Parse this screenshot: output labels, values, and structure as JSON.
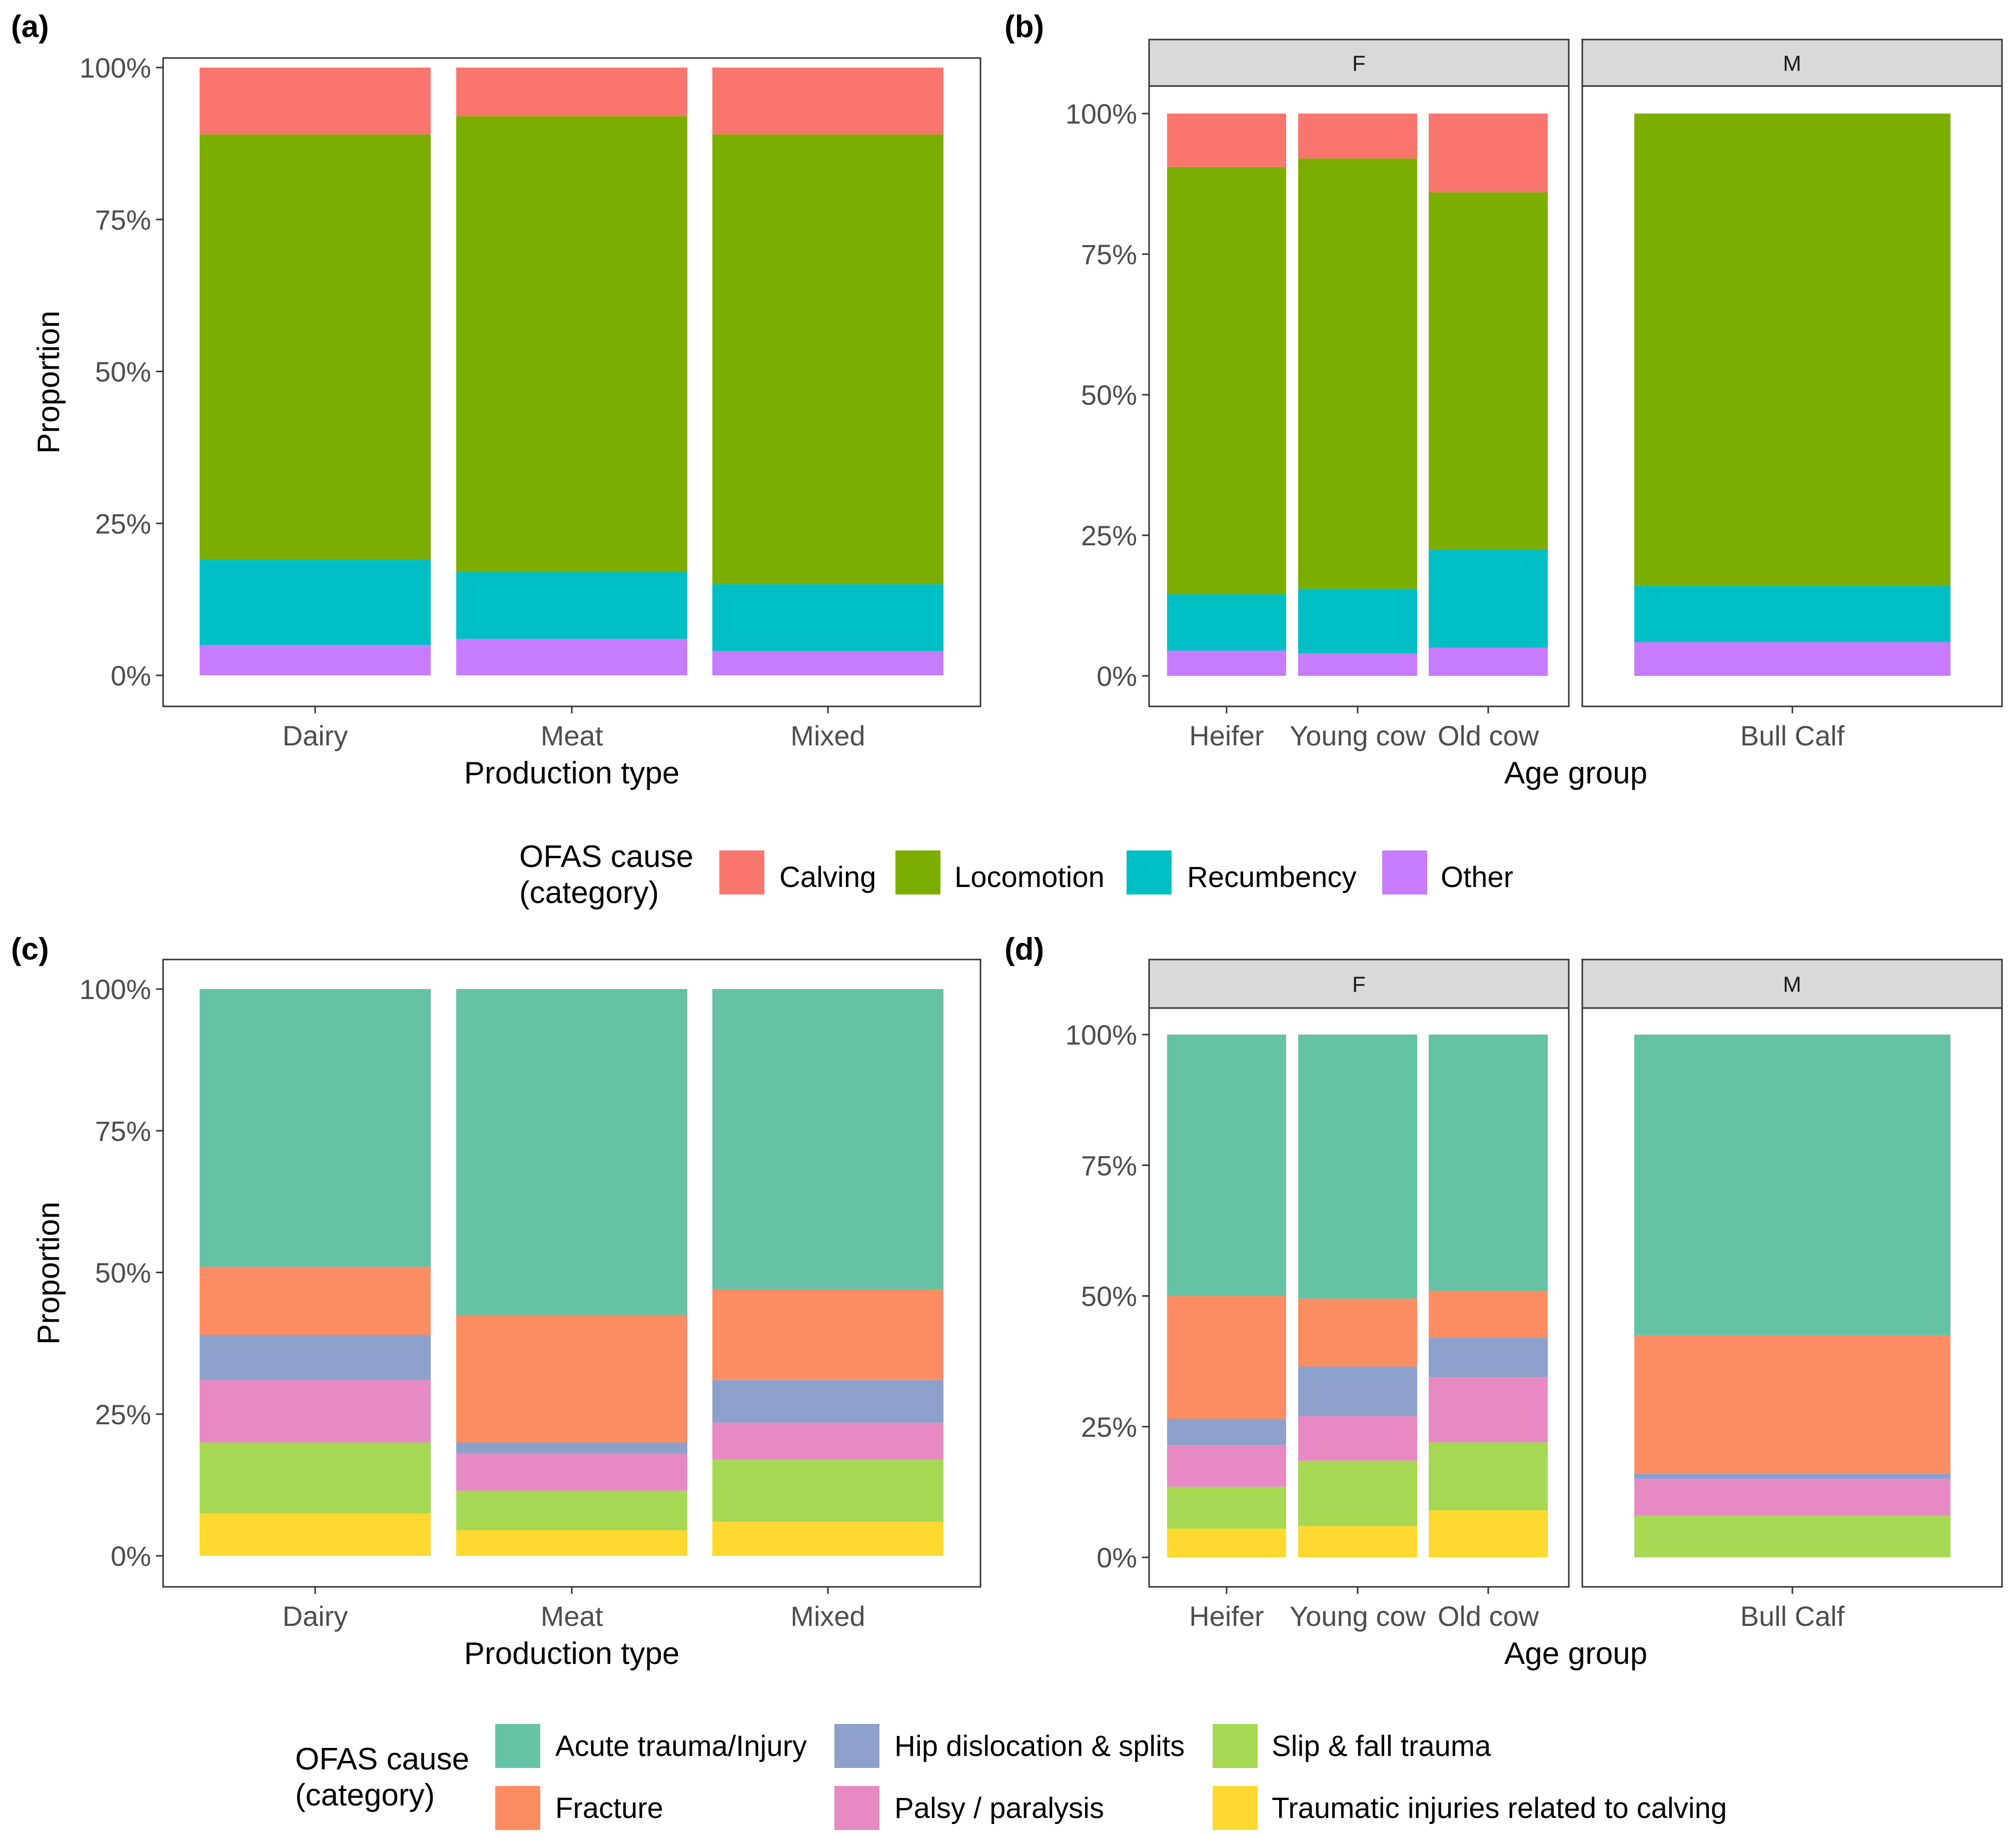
{
  "panels": [
    {
      "label": "(a)",
      "type": "production",
      "x_title": "Production type",
      "y_title": "Proportion",
      "chart_data": {
        "type": "bar",
        "stacked": true,
        "categories": [
          "Dairy",
          "Meat",
          "Mixed"
        ],
        "series": [
          {
            "name": "Other",
            "values": [
              0.05,
              0.06,
              0.04
            ]
          },
          {
            "name": "Recumbency",
            "values": [
              0.14,
              0.11,
              0.11
            ]
          },
          {
            "name": "Locomotion",
            "values": [
              0.7,
              0.75,
              0.74
            ]
          },
          {
            "name": "Calving",
            "values": [
              0.11,
              0.08,
              0.11
            ]
          }
        ],
        "ylim": [
          0,
          1
        ],
        "yticks": [
          "0%",
          "25%",
          "50%",
          "75%",
          "100%"
        ]
      }
    },
    {
      "label": "(b)",
      "type": "age",
      "x_title": "Age group",
      "facets": [
        {
          "strip": "F",
          "chart_data": {
            "type": "bar",
            "stacked": true,
            "categories": [
              "Heifer",
              "Young cow",
              "Old cow"
            ],
            "series": [
              {
                "name": "Other",
                "values": [
                  0.045,
                  0.04,
                  0.05
                ]
              },
              {
                "name": "Recumbency",
                "values": [
                  0.1,
                  0.115,
                  0.175
                ]
              },
              {
                "name": "Locomotion",
                "values": [
                  0.76,
                  0.765,
                  0.635
                ]
              },
              {
                "name": "Calving",
                "values": [
                  0.095,
                  0.08,
                  0.14
                ]
              }
            ],
            "ylim": [
              0,
              1
            ]
          }
        },
        {
          "strip": "M",
          "chart_data": {
            "type": "bar",
            "stacked": true,
            "categories": [
              "Bull Calf"
            ],
            "series": [
              {
                "name": "Other",
                "values": [
                  0.06
                ]
              },
              {
                "name": "Recumbency",
                "values": [
                  0.1
                ]
              },
              {
                "name": "Locomotion",
                "values": [
                  0.84
                ]
              },
              {
                "name": "Calving",
                "values": [
                  0.0
                ]
              }
            ],
            "ylim": [
              0,
              1
            ]
          }
        }
      ],
      "yticks": [
        "0%",
        "25%",
        "50%",
        "75%",
        "100%"
      ]
    },
    {
      "label": "(c)",
      "type": "production",
      "x_title": "Production type",
      "y_title": "Proportion",
      "chart_data": {
        "type": "bar",
        "stacked": true,
        "categories": [
          "Dairy",
          "Meat",
          "Mixed"
        ],
        "series": [
          {
            "name": "Traumatic injuries related to calving",
            "values": [
              0.075,
              0.045,
              0.06
            ]
          },
          {
            "name": "Slip & fall trauma",
            "values": [
              0.125,
              0.07,
              0.11
            ]
          },
          {
            "name": "Palsy / paralysis",
            "values": [
              0.11,
              0.065,
              0.065
            ]
          },
          {
            "name": "Hip dislocation & splits",
            "values": [
              0.08,
              0.02,
              0.075
            ]
          },
          {
            "name": "Fracture",
            "values": [
              0.12,
              0.225,
              0.16
            ]
          },
          {
            "name": "Acute trauma/Injury",
            "values": [
              0.49,
              0.575,
              0.53
            ]
          }
        ],
        "ylim": [
          0,
          1
        ],
        "yticks": [
          "0%",
          "25%",
          "50%",
          "75%",
          "100%"
        ]
      }
    },
    {
      "label": "(d)",
      "type": "age",
      "x_title": "Age group",
      "facets": [
        {
          "strip": "F",
          "chart_data": {
            "type": "bar",
            "stacked": true,
            "categories": [
              "Heifer",
              "Young cow",
              "Old cow"
            ],
            "series": [
              {
                "name": "Traumatic injuries related to calving",
                "values": [
                  0.055,
                  0.06,
                  0.09
                ]
              },
              {
                "name": "Slip & fall trauma",
                "values": [
                  0.08,
                  0.125,
                  0.13
                ]
              },
              {
                "name": "Palsy / paralysis",
                "values": [
                  0.08,
                  0.085,
                  0.125
                ]
              },
              {
                "name": "Hip dislocation & splits",
                "values": [
                  0.05,
                  0.095,
                  0.075
                ]
              },
              {
                "name": "Fracture",
                "values": [
                  0.235,
                  0.13,
                  0.09
                ]
              },
              {
                "name": "Acute trauma/Injury",
                "values": [
                  0.5,
                  0.505,
                  0.49
                ]
              }
            ],
            "ylim": [
              0,
              1
            ]
          }
        },
        {
          "strip": "M",
          "chart_data": {
            "type": "bar",
            "stacked": true,
            "categories": [
              "Bull Calf"
            ],
            "series": [
              {
                "name": "Traumatic injuries related to calving",
                "values": [
                  0.0
                ]
              },
              {
                "name": "Slip & fall trauma",
                "values": [
                  0.08
                ]
              },
              {
                "name": "Palsy / paralysis",
                "values": [
                  0.07
                ]
              },
              {
                "name": "Hip dislocation & splits",
                "values": [
                  0.01
                ]
              },
              {
                "name": "Fracture",
                "values": [
                  0.265
                ]
              },
              {
                "name": "Acute trauma/Injury",
                "values": [
                  0.575
                ]
              }
            ],
            "ylim": [
              0,
              1
            ]
          }
        }
      ],
      "yticks": [
        "0%",
        "25%",
        "50%",
        "75%",
        "100%"
      ]
    }
  ],
  "legend_top": {
    "title_line1": "OFAS cause",
    "title_line2": "(category)",
    "items": [
      {
        "name": "Calving",
        "color": "#F8766D"
      },
      {
        "name": "Locomotion",
        "color": "#7CAE00"
      },
      {
        "name": "Recumbency",
        "color": "#00BFC4"
      },
      {
        "name": "Other",
        "color": "#C77CFF"
      }
    ]
  },
  "legend_bottom": {
    "title_line1": "OFAS cause",
    "title_line2": "(category)",
    "items": [
      {
        "name": "Acute trauma/Injury",
        "color": "#66C2A5"
      },
      {
        "name": "Hip dislocation & splits",
        "color": "#8DA0CB"
      },
      {
        "name": "Slip & fall trauma",
        "color": "#A6D854"
      },
      {
        "name": "Fracture",
        "color": "#FC8D62"
      },
      {
        "name": "Palsy / paralysis",
        "color": "#E78AC3"
      },
      {
        "name": "Traumatic injuries related to calving",
        "color": "#FFD92F"
      }
    ]
  }
}
